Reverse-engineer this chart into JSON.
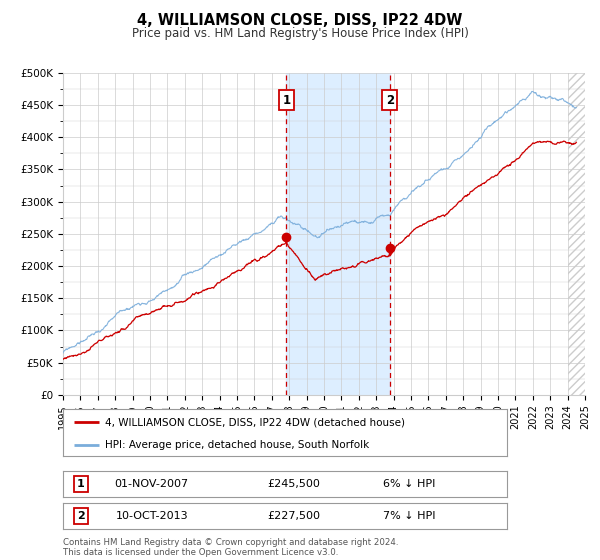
{
  "title": "4, WILLIAMSON CLOSE, DISS, IP22 4DW",
  "subtitle": "Price paid vs. HM Land Registry's House Price Index (HPI)",
  "legend_line1": "4, WILLIAMSON CLOSE, DISS, IP22 4DW (detached house)",
  "legend_line2": "HPI: Average price, detached house, South Norfolk",
  "annotation1_date": "01-NOV-2007",
  "annotation1_price": "£245,500",
  "annotation1_hpi": "6% ↓ HPI",
  "annotation2_date": "10-OCT-2013",
  "annotation2_price": "£227,500",
  "annotation2_hpi": "7% ↓ HPI",
  "footer": "Contains HM Land Registry data © Crown copyright and database right 2024.\nThis data is licensed under the Open Government Licence v3.0.",
  "xmin": 1995.0,
  "xmax": 2025.0,
  "ymin": 0,
  "ymax": 500000,
  "yticks": [
    0,
    50000,
    100000,
    150000,
    200000,
    250000,
    300000,
    350000,
    400000,
    450000,
    500000
  ],
  "ytick_labels": [
    "£0",
    "£50K",
    "£100K",
    "£150K",
    "£200K",
    "£250K",
    "£300K",
    "£350K",
    "£400K",
    "£450K",
    "£500K"
  ],
  "xticks": [
    1995,
    1996,
    1997,
    1998,
    1999,
    2000,
    2001,
    2002,
    2003,
    2004,
    2005,
    2006,
    2007,
    2008,
    2009,
    2010,
    2011,
    2012,
    2013,
    2014,
    2015,
    2016,
    2017,
    2018,
    2019,
    2020,
    2021,
    2022,
    2023,
    2024,
    2025
  ],
  "sale1_x": 2007.84,
  "sale1_y": 245500,
  "sale2_x": 2013.78,
  "sale2_y": 227500,
  "vline1_x": 2007.84,
  "vline2_x": 2013.78,
  "shade_xmin": 2007.84,
  "shade_xmax": 2013.78,
  "red_color": "#cc0000",
  "blue_color": "#7aaddb",
  "shade_color": "#ddeeff",
  "grid_color": "#cccccc",
  "bg_color": "#ffffff",
  "hatch_color": "#cccccc"
}
